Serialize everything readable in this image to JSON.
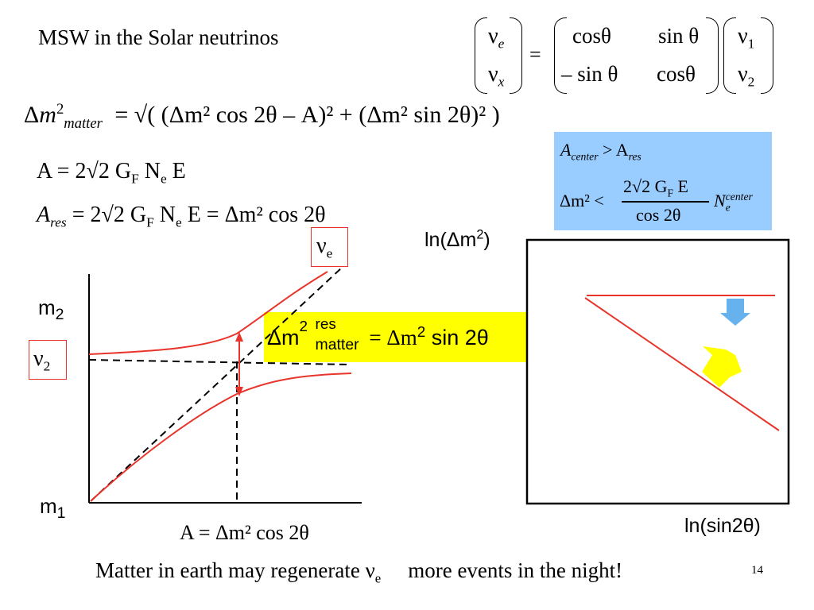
{
  "title": "MSW in the Solar neutrinos",
  "mixing": {
    "nu_e": "ν",
    "sub_e": "e",
    "nu_x": "ν",
    "sub_x": "x",
    "eq": "=",
    "m11": "cosθ",
    "m12": "sin θ",
    "m21": "– sin θ",
    "m22": "cosθ",
    "nu_1": "ν",
    "sub_1": "1",
    "nu_2": "ν",
    "sub_2": "2"
  },
  "eq_matter": {
    "lhs": "Δ",
    "lhs_m": "m",
    "lhs_sup": "2",
    "lhs_sub": "matter",
    "rhs": "= √( (Δm² cos 2θ – A)² + (Δm² sin 2θ)² )"
  },
  "eq_A": {
    "text": "A = 2√2 G",
    "sub_F": "F",
    "N": " N",
    "sub_e": "e",
    "E": " E"
  },
  "eq_Ares": {
    "A": "A",
    "sub": "res",
    "text": " = 2√2 G",
    "sub_F": "F",
    "N": " N",
    "sub_e": "e",
    "rest": " E = Δm² cos 2θ"
  },
  "condition": {
    "line1_A": "A",
    "line1_sub": "center",
    "line1_gt": " > A",
    "line1_sub2": "res",
    "line2_lhs": "Δm² <",
    "frac_num": "2√2 G",
    "frac_num_sub": "F",
    "frac_num_E": " E",
    "frac_den": "cos 2θ",
    "N": "N",
    "N_sub": "e",
    "N_sup": "center"
  },
  "left_plot": {
    "m2_label": "m",
    "m2_sub": "2",
    "m1_label": "m",
    "m1_sub": "1",
    "nu2_label": "ν",
    "nu2_sub": "2",
    "nue_label": "ν",
    "nue_sub": "e",
    "x_caption": "A = Δm² cos 2θ"
  },
  "resonance": {
    "lhs": "Δm",
    "sup": "2",
    "sup_top": "res",
    "sub": "matter",
    "rhs": " = Δm",
    "rhs_sup": "2",
    "rhs_tail": " sin 2θ"
  },
  "right_plot": {
    "y_label": "ln(Δm",
    "y_sup": "2",
    "y_close": ")",
    "x_label": "ln(sin2θ)"
  },
  "footer": {
    "text_before": "Matter in earth may regenerate ν",
    "sub_e": "e",
    "text_after": "more events in the night!",
    "page_number": "14"
  },
  "colors": {
    "red": "#e8342a",
    "blue_box": "#99ccff",
    "yellow_box": "#ffff00",
    "down_arrow": "#66b2ee",
    "up_arrow": "#ffff00"
  }
}
